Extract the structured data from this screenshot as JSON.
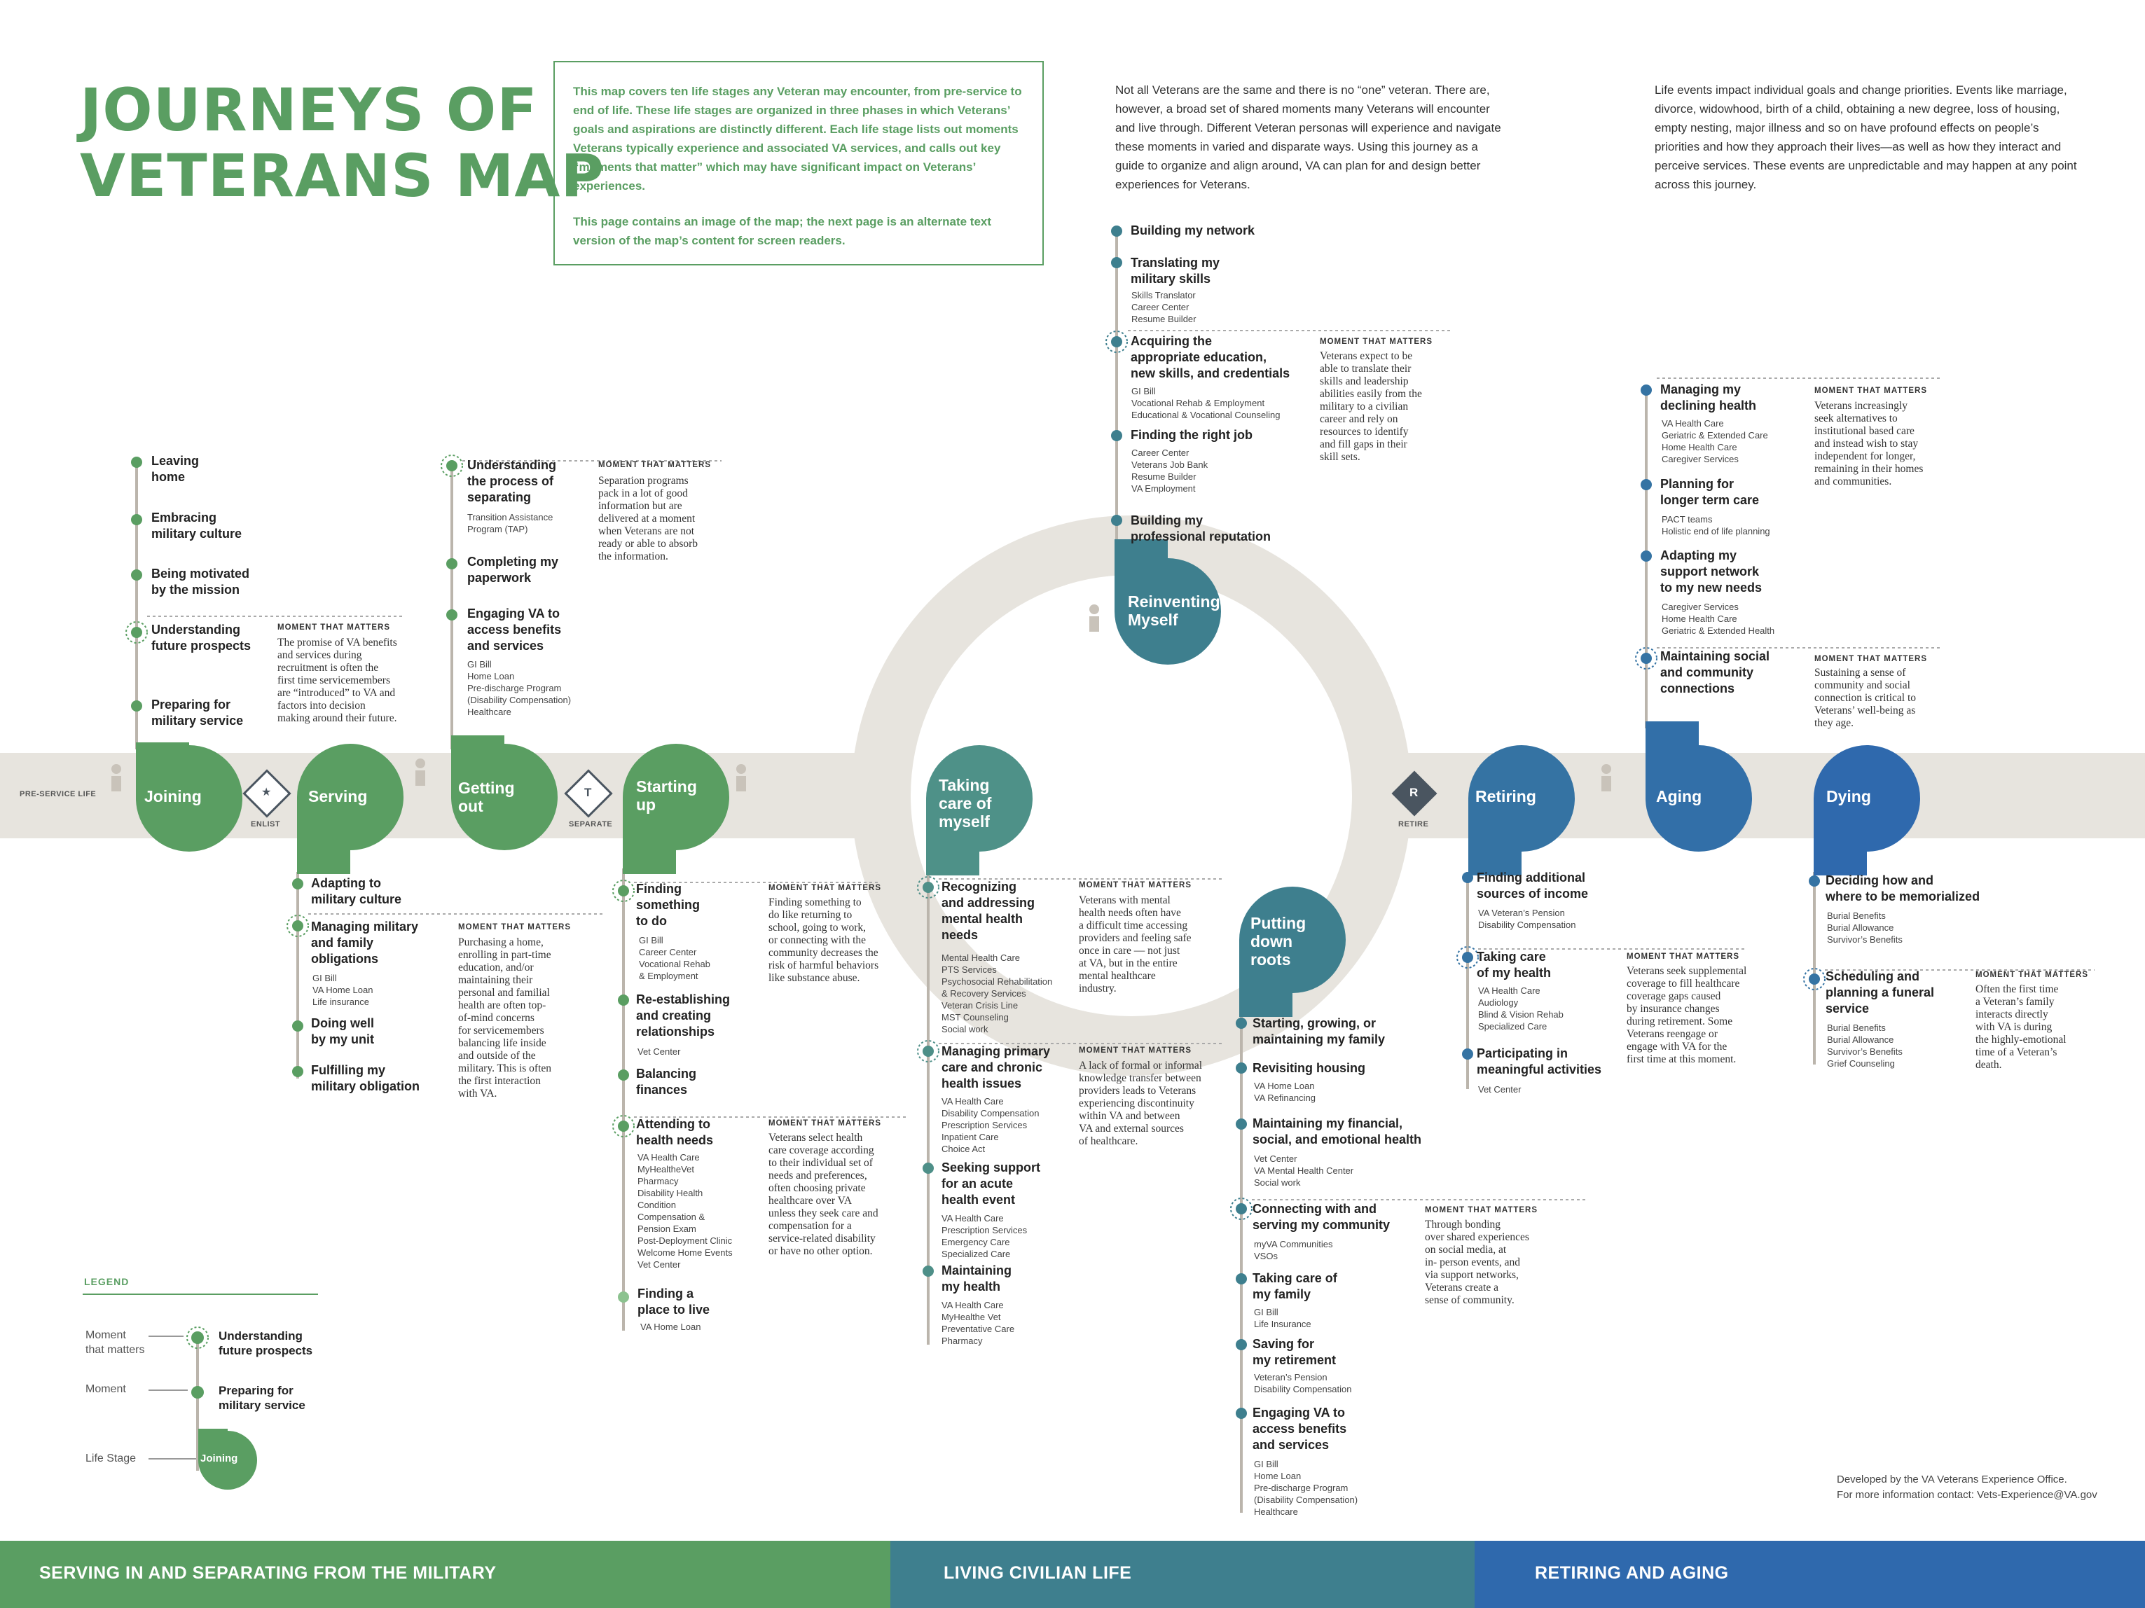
{
  "title": "JOURNEYS OF\nVETERANS MAP",
  "intro": {
    "p1": "This map covers ten life stages any Veteran may encounter, from pre-service to end of life. These life stages are organized in three phases in which Veterans’ goals and aspirations are distinctly different. Each life stage lists out moments Veterans typically experience and associated VA services, and calls out key “moments that matter” which may have significant impact on Veterans’ experiences.",
    "p2": "This page contains an image of the map; the next page is an alternate text version of the map’s content for screen readers."
  },
  "prose1": "Not all Veterans are the same and there is no “one” veteran. There are, however, a broad set of shared moments many Veterans will encounter and live through. Different Veteran personas will experience and navigate these moments in varied and disparate ways. Using this journey as a guide to organize and align around, VA can plan for and design better experiences for Veterans.",
  "prose2": "Life events impact individual goals and change priorities. Events like marriage, divorce, widowhood, birth of a child, obtaining a new degree, loss of housing, empty nesting, major illness and so on have profound effects on people’s priorities and how they approach their lives—as well as how they interact and perceive services. These events are unpredictable and may happen at any point across this journey.",
  "road": {
    "pre_service": "PRE-SERVICE LIFE",
    "enlist": "ENLIST",
    "separate": "SEPARATE",
    "retire": "RETIRE",
    "enlist_icon": "★",
    "separate_icon": "T",
    "retire_icon": "R"
  },
  "mtm_heading": "MOMENT THAT MATTERS",
  "stages": {
    "joining": "Joining",
    "serving": "Serving",
    "getting_out": "Getting\nout",
    "starting_up": "Starting\nup",
    "taking_care": "Taking\ncare of\nmyself",
    "reinventing": "Reinventing\nMyself",
    "putting_down": "Putting\ndown\nroots",
    "retiring": "Retiring",
    "aging": "Aging",
    "dying": "Dying"
  },
  "joining": {
    "m1": "Leaving\nhome",
    "m2": "Embracing\nmilitary culture",
    "m3": "Being motivated\nby the mission",
    "m4": "Understanding\nfuture prospects",
    "m5": "Preparing for\nmilitary service",
    "mtm": "The promise of VA benefits\nand services during\nrecruitment is often the\nfirst time servicemembers\nare “introduced” to VA and\nfactors into decision\nmaking around their future."
  },
  "serving": {
    "m1": "Adapting to\nmilitary culture",
    "m2": "Managing military\nand family\nobligations",
    "m2s": "GI Bill\nVA Home Loan\nLife insurance",
    "m3": "Doing well\nby my unit",
    "m4": "Fulfilling my\nmilitary obligation",
    "mtm": "Purchasing a home,\nenrolling in part-time\neducation, and/or\nmaintaining their\npersonal and familial\nhealth are often top-\nof-mind concerns\nfor servicemembers\nbalancing life inside\nand outside of the\nmilitary. This is often\nthe first interaction\nwith VA."
  },
  "getting_out": {
    "m1": "Understanding\nthe process of\nseparating",
    "m1s": "Transition Assistance\nProgram (TAP)",
    "m2": "Completing my\npaperwork",
    "m3": "Engaging VA to\naccess benefits\nand services",
    "m3s": "GI Bill\nHome Loan\nPre-discharge Program\n(Disability Compensation)\nHealthcare",
    "mtm": "Separation programs\npack in a lot of good\ninformation but are\ndelivered at a moment\nwhen Veterans are not\nready or able to absorb\nthe information."
  },
  "starting_up": {
    "m1": "Finding\nsomething\nto do",
    "m1s": "GI Bill\nCareer Center\nVocational Rehab\n& Employment",
    "m2": "Re-establishing\nand creating\nrelationships",
    "m2s": "Vet Center",
    "m3": "Balancing\nfinances",
    "m4": "Attending to\nhealth needs",
    "m4s": "VA Health Care\nMyHealtheVet\nPharmacy\nDisability Health\nCondition\nCompensation &\nPension Exam\nPost-Deployment Clinic\nWelcome Home Events\nVet Center",
    "m5": "Finding a\nplace to live",
    "m5s": "VA Home Loan",
    "mtm1": "Finding something to\ndo like returning to\nschool, going to work,\nor connecting with the\ncommunity decreases the\nrisk of harmful behaviors\nlike substance abuse.",
    "mtm2": "Veterans select health\ncare coverage according\nto their individual set of\nneeds and preferences,\noften choosing private\nhealthcare over VA\nunless they seek care and\ncompensation for a\nservice-related disability\nor have no other option."
  },
  "taking_care": {
    "m1": "Recognizing\nand addressing\nmental health\nneeds",
    "m1s": "Mental Health Care\nPTS Services\nPsychosocial Rehabilitation\n& Recovery Services\nVeteran Crisis Line\nMST Counseling\nSocial work",
    "m2": "Managing primary\ncare and chronic\nhealth issues",
    "m2s": "VA Health Care\nDisability Compensation\nPrescription Services\nInpatient Care\nChoice Act",
    "m3": "Seeking support\nfor an acute\nhealth event",
    "m3s": "VA Health Care\nPrescription Services\nEmergency Care\nSpecialized Care",
    "m4": "Maintaining\nmy health",
    "m4s": "VA Health Care\nMyHealthe Vet\nPreventative Care\nPharmacy",
    "mtm1": "Veterans with mental\nhealth needs often have\na difficult time accessing\nproviders and feeling safe\nonce in care — not just\nat VA, but in the entire\nmental healthcare\nindustry.",
    "mtm2": "A lack of formal or informal\nknowledge transfer between\nproviders leads to Veterans\nexperiencing discontinuity\nwithin VA and between\nVA and external sources\nof healthcare."
  },
  "reinventing": {
    "m1": "Building my network",
    "m2": "Translating my\nmilitary skills",
    "m2s": "Skills Translator\nCareer Center\nResume Builder",
    "m3": "Acquiring the\nappropriate education,\nnew skills, and credentials",
    "m3s": "GI Bill\nVocational Rehab & Employment\nEducational & Vocational Counseling",
    "m4": "Finding the right job",
    "m4s": "Career Center\nVeterans Job Bank\nResume Builder\nVA Employment",
    "m5": "Building my\nprofessional reputation",
    "mtm": "Veterans expect to be\nable to translate their\nskills and leadership\nabilities easily from the\nmilitary to a civilian\ncareer and rely on\nresources to identify\nand fill gaps in their\nskill sets."
  },
  "putting_down": {
    "m1": "Starting, growing, or\nmaintaining my family",
    "m2": "Revisiting housing",
    "m2s": "VA Home Loan\nVA Refinancing",
    "m3": "Maintaining my financial,\nsocial, and emotional health",
    "m3s": "Vet Center\nVA Mental Health Center\nSocial work",
    "m4": "Connecting with and\nserving my community",
    "m4s": "myVA Communities\nVSOs",
    "m5": "Taking care of\nmy family",
    "m5s": "GI Bill\nLife Insurance",
    "m6": "Saving for\nmy retirement",
    "m6s": "Veteran’s Pension\nDisability Compensation",
    "m7": "Engaging VA to\naccess benefits\nand services",
    "m7s": "GI Bill\nHome Loan\nPre-discharge Program\n(Disability Compensation)\nHealthcare",
    "mtm": "Through bonding\nover shared experiences\non social media, at\nin- person events, and\nvia support networks,\nVeterans create a\nsense of community."
  },
  "retiring": {
    "m1": "Finding additional\nsources of income",
    "m1s": "VA Veteran’s Pension\nDisability Compensation",
    "m2": "Taking care\nof my health",
    "m2s": "VA Health Care\nAudiology\nBlind & Vision Rehab\nSpecialized Care",
    "m3": "Participating in\nmeaningful activities",
    "m3s": "Vet Center",
    "mtm": "Veterans seek supplemental\ncoverage to fill healthcare\ncoverage gaps caused\nby insurance changes\nduring retirement. Some\nVeterans reengage or\nengage with VA for the\nfirst time at this moment."
  },
  "aging": {
    "m1": "Managing my\ndeclining health",
    "m1s": "VA Health Care\nGeriatric & Extended Care\nHome Health Care\nCaregiver Services",
    "m2": "Planning for\nlonger term care",
    "m2s": "PACT teams\nHolistic end of life planning",
    "m3": "Adapting my\nsupport network\nto my new needs",
    "m3s": "Caregiver Services\nHome Health Care\nGeriatric & Extended Health",
    "m4": "Maintaining social\nand community\nconnections",
    "mtm1": "Veterans increasingly\nseek alternatives to\ninstitutional based care\nand instead wish to stay\nindependent for longer,\nremaining in their homes\nand communities.",
    "mtm2": "Sustaining a sense of\ncommunity and social\nconnection is critical to\nVeterans’ well-being as\nthey age."
  },
  "dying": {
    "m1": "Deciding how and\nwhere to be memorialized",
    "m1s": "Burial Benefits\nBurial Allowance\nSurvivor’s Benefits",
    "m2": "Scheduling and\nplanning a funeral\nservice",
    "m2s": "Burial Benefits\nBurial Allowance\nSurvivor’s Benefits\nGrief Counseling",
    "mtm": "Often the first time\na Veteran’s family\ninteracts directly\nwith VA is during\nthe highly-emotional\ntime of a Veteran’s\ndeath."
  },
  "legend": {
    "heading": "LEGEND",
    "mtm_label": "Moment\nthat matters",
    "mtm_example": "Understanding\nfuture prospects",
    "moment_label": "Moment",
    "moment_example": "Preparing for\nmilitary service",
    "stage_label": "Life Stage",
    "stage_example": "Joining"
  },
  "credit": {
    "line1": "Developed by the VA Veterans Experience Office.",
    "line2": "For more information contact: Vets-Experience@VA.gov"
  },
  "phases": {
    "p1": "SERVING IN AND SEPARATING FROM THE MILITARY",
    "p2": "LIVING CIVILIAN LIFE",
    "p3": "RETIRING AND AGING"
  },
  "colors": {
    "green": "#5a9e62",
    "teal": "#3e7f8e",
    "blue": "#2f69ad",
    "road": "#e7e4de"
  }
}
